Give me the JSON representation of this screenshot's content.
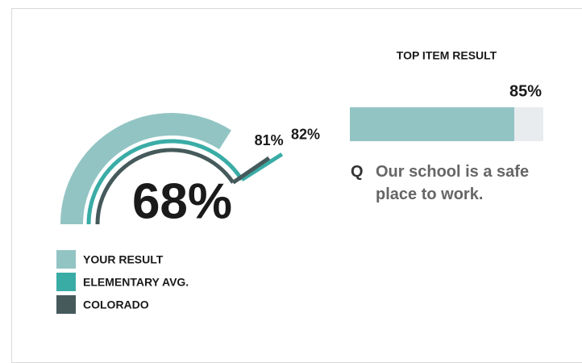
{
  "chart_data": [
    {
      "type": "gauge",
      "xlim": [
        0,
        100
      ],
      "series": [
        {
          "name": "YOUR RESULT",
          "color": "#93c4c4",
          "values": [
            68
          ],
          "value_labels": [
            "68%"
          ]
        },
        {
          "name": "ELEMENTARY AVG.",
          "color": "#3aaca6",
          "values": [
            82
          ],
          "value_labels": [
            "82%"
          ]
        },
        {
          "name": "COLORADO",
          "color": "#465a5c",
          "values": [
            81
          ],
          "value_labels": [
            "81%"
          ]
        }
      ]
    },
    {
      "type": "bar",
      "title": "TOP ITEM RESULT",
      "xlim": [
        0,
        100
      ],
      "values": [
        85
      ],
      "value_labels": [
        "85%"
      ],
      "color": "#93c4c4",
      "track_color": "#e8ecef",
      "question_marker": "Q",
      "question": "Our school is a safe place to work."
    }
  ]
}
